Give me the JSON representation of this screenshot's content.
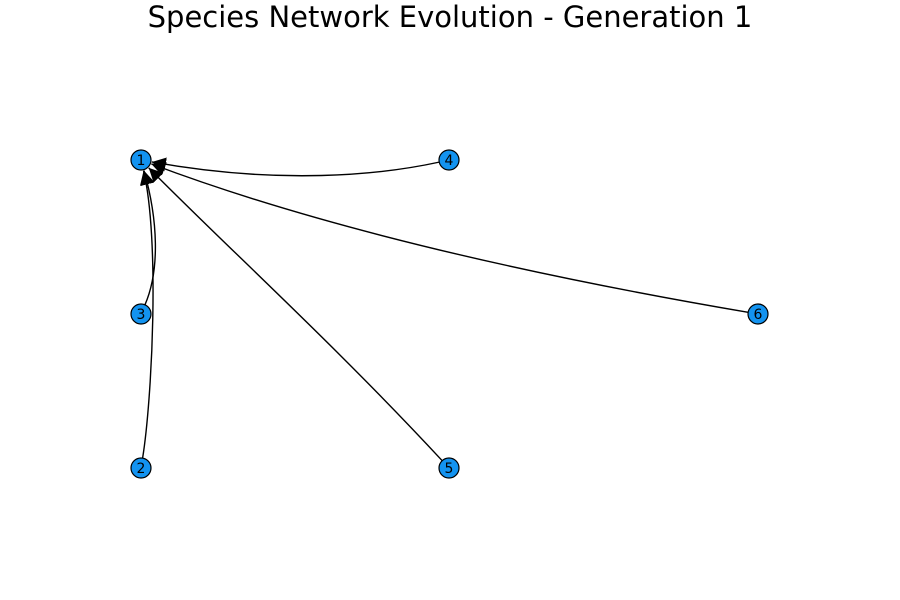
{
  "title": "Species Network Evolution - Generation 1",
  "colors": {
    "node_fill": "#1393f0",
    "node_stroke": "#000000",
    "edge": "#000000",
    "background": "#ffffff"
  },
  "nodes": [
    {
      "id": "1",
      "label": "1"
    },
    {
      "id": "2",
      "label": "2"
    },
    {
      "id": "3",
      "label": "3"
    },
    {
      "id": "4",
      "label": "4"
    },
    {
      "id": "5",
      "label": "5"
    },
    {
      "id": "6",
      "label": "6"
    }
  ],
  "edges": [
    {
      "from": "2",
      "to": "1"
    },
    {
      "from": "3",
      "to": "1"
    },
    {
      "from": "4",
      "to": "1"
    },
    {
      "from": "5",
      "to": "1"
    },
    {
      "from": "6",
      "to": "1"
    }
  ]
}
